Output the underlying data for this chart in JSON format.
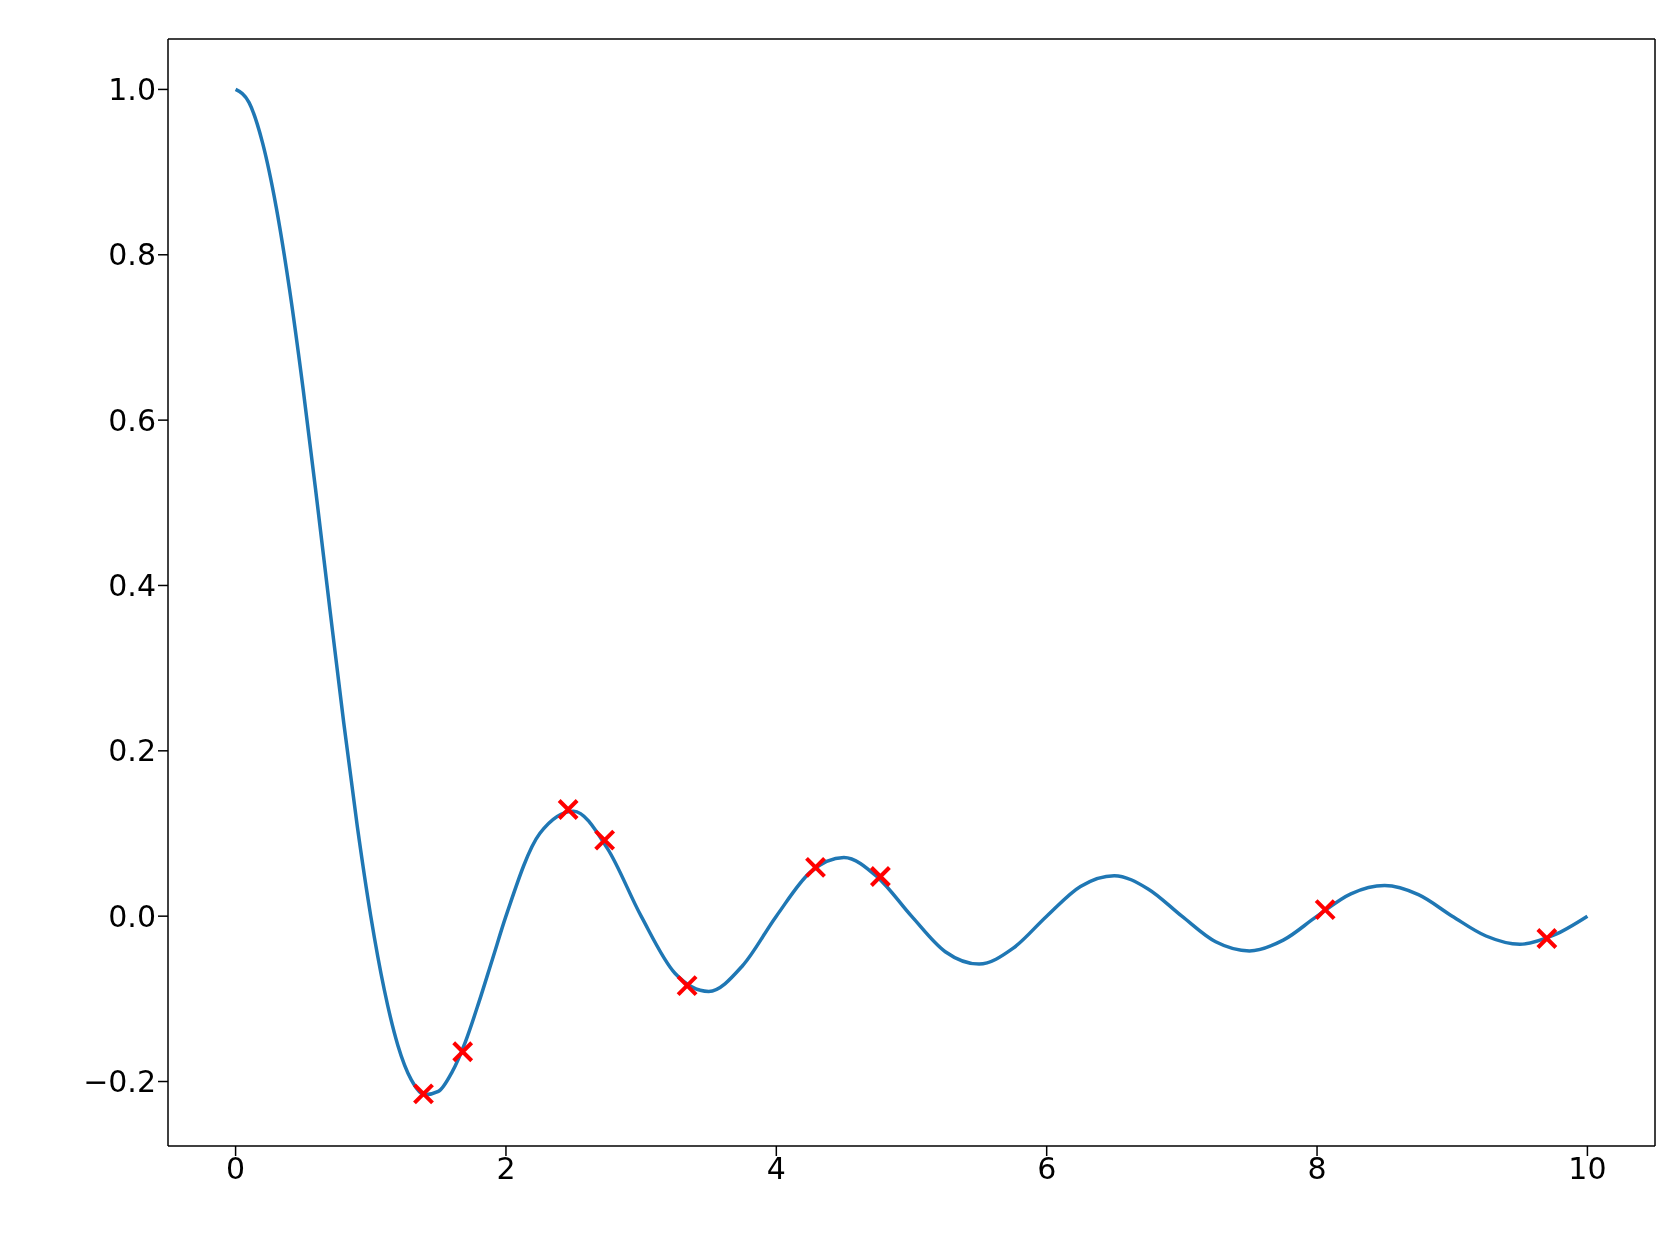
{
  "chart_data": {
    "type": "line",
    "xlim": [
      -0.5,
      10.5
    ],
    "ylim": [
      -0.278,
      1.061
    ],
    "xticks": [
      0,
      2,
      4,
      6,
      8,
      10
    ],
    "yticks": [
      {
        "value": -0.2,
        "label": "−0.2"
      },
      {
        "value": 0,
        "label": "0.0"
      },
      {
        "value": 0.2,
        "label": "0.2"
      },
      {
        "value": 0.4,
        "label": "0.4"
      },
      {
        "value": 0.6,
        "label": "0.6"
      },
      {
        "value": 0.8,
        "label": "0.8"
      },
      {
        "value": 1,
        "label": "1.0"
      }
    ],
    "grid": false,
    "legend": false,
    "series": [
      {
        "color": "#1f77b4",
        "marker": "none",
        "line_style": "solid",
        "x": [
          0,
          0.1,
          0.2,
          0.3,
          0.4,
          0.5,
          0.6,
          0.7,
          0.8,
          0.9,
          1,
          1.1,
          1.2,
          1.3,
          1.4,
          1.5,
          1.6,
          1.7,
          1.8,
          1.9,
          2,
          2.25,
          2.5,
          2.75,
          3,
          3.25,
          3.5,
          3.75,
          4,
          4.25,
          4.5,
          4.75,
          5,
          5.25,
          5.5,
          5.75,
          6,
          6.25,
          6.5,
          6.75,
          7,
          7.25,
          7.5,
          7.75,
          8,
          8.25,
          8.5,
          8.75,
          9,
          9.25,
          9.5,
          9.75,
          10
        ],
        "values": [
          1,
          0.984,
          0.935,
          0.858,
          0.757,
          0.637,
          0.505,
          0.368,
          0.234,
          0.109,
          0,
          -0.089,
          -0.156,
          -0.198,
          -0.216,
          -0.212,
          -0.189,
          -0.152,
          -0.104,
          -0.052,
          0,
          0.1,
          0.127,
          0.082,
          0,
          -0.069,
          -0.091,
          -0.06,
          0,
          0.053,
          0.071,
          0.047,
          0,
          -0.043,
          -0.058,
          -0.039,
          0,
          0.036,
          0.049,
          0.033,
          0,
          -0.031,
          -0.042,
          -0.029,
          0,
          0.027,
          0.037,
          0.026,
          0,
          -0.024,
          -0.034,
          -0.023,
          0
        ]
      },
      {
        "type": "scatter",
        "color": "#ff0000",
        "marker": "cross",
        "x": [
          1.39,
          1.68,
          2.46,
          2.73,
          3.34,
          4.29,
          4.77,
          8.06,
          9.7
        ],
        "values": [
          -0.215,
          -0.164,
          0.129,
          0.092,
          -0.084,
          0.059,
          0.048,
          0.008,
          -0.027
        ]
      }
    ]
  }
}
